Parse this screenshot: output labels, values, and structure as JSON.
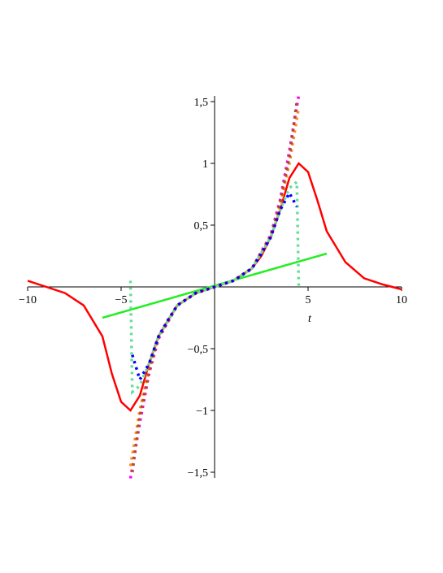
{
  "chart_data": {
    "type": "line",
    "x_label": "t",
    "xlim": [
      -10,
      10
    ],
    "ylim": [
      -1.5,
      1.5
    ],
    "xticks": [
      {
        "value": -10,
        "label": "−10"
      },
      {
        "value": -5,
        "label": "−5"
      },
      5,
      10
    ],
    "yticks": [
      {
        "value": 1.5,
        "label": "1,5"
      },
      1,
      {
        "value": 0.5,
        "label": "0,5"
      },
      {
        "value": -0.5,
        "label": "−0,5"
      },
      {
        "value": -1,
        "label": "−1"
      },
      {
        "value": -1.5,
        "label": "−1,5"
      }
    ],
    "series": [
      {
        "color": "#ff0000",
        "style": "solid",
        "x": [
          -10,
          -9,
          -8,
          -7,
          -6,
          -5.5,
          -5,
          -4.5,
          -4,
          -3.5,
          -3,
          -2.5,
          -2,
          -1,
          0,
          1,
          2,
          2.5,
          3,
          3.5,
          4,
          4.5,
          5,
          5.5,
          6,
          7,
          8,
          9,
          10
        ],
        "values": [
          0.05,
          0.0,
          -0.05,
          -0.15,
          -0.4,
          -0.7,
          -0.93,
          -1.0,
          -0.88,
          -0.62,
          -0.4,
          -0.27,
          -0.15,
          -0.05,
          0,
          0.05,
          0.15,
          0.25,
          0.4,
          0.62,
          0.88,
          1.0,
          0.93,
          0.7,
          0.45,
          0.2,
          0.07,
          0.02,
          -0.02
        ]
      },
      {
        "color": "#22ee22",
        "style": "solid",
        "x": [
          -6,
          6
        ],
        "values": [
          -0.25,
          0.27
        ]
      },
      {
        "color": "#ff00ff",
        "style": "dotted",
        "x": [
          -4.5,
          -4,
          -3.5,
          -3,
          -2,
          -1,
          0,
          1,
          2,
          3,
          3.5,
          4,
          4.5
        ],
        "values": [
          -1.55,
          -1.1,
          -0.7,
          -0.42,
          -0.15,
          -0.05,
          0,
          0.05,
          0.15,
          0.42,
          0.7,
          1.1,
          1.55
        ]
      },
      {
        "color": "#ff8c1a",
        "style": "dotted",
        "x": [
          -4.5,
          -4,
          -3.5,
          -3,
          -2,
          -1,
          0,
          1,
          2,
          3,
          3.5,
          4,
          4.5
        ],
        "values": [
          -1.45,
          -1.0,
          -0.66,
          -0.41,
          -0.15,
          -0.05,
          0,
          0.05,
          0.15,
          0.41,
          0.66,
          1.0,
          1.45
        ]
      },
      {
        "color": "#b04a30",
        "style": "dotted",
        "x": [
          -4.4,
          -4,
          -3.5,
          -3,
          -2,
          -1,
          0,
          1,
          2,
          3,
          3.5,
          4,
          4.4
        ],
        "values": [
          -1.5,
          -1.05,
          -0.68,
          -0.41,
          -0.15,
          -0.05,
          0,
          0.05,
          0.15,
          0.41,
          0.68,
          1.05,
          1.5
        ]
      },
      {
        "color": "#66dd99",
        "style": "dotted",
        "x": [
          -4.5,
          -4.4,
          -4,
          -3.5,
          -3,
          -2,
          -1,
          0,
          1,
          2,
          3,
          3.5,
          4,
          4.4,
          4.5
        ],
        "values": [
          0.05,
          -0.85,
          -0.8,
          -0.62,
          -0.4,
          -0.15,
          -0.05,
          0,
          0.05,
          0.15,
          0.4,
          0.62,
          0.8,
          0.85,
          0
        ]
      },
      {
        "color": "#0000ff",
        "style": "dotted",
        "x": [
          -4.4,
          -4,
          -3.5,
          -3,
          -2.5,
          -2,
          -1,
          0,
          1,
          2,
          2.5,
          3,
          3.5,
          4,
          4.4
        ],
        "values": [
          -0.55,
          -0.75,
          -0.62,
          -0.4,
          -0.27,
          -0.15,
          -0.05,
          0,
          0.05,
          0.15,
          0.27,
          0.4,
          0.62,
          0.76,
          0.65
        ]
      }
    ]
  }
}
